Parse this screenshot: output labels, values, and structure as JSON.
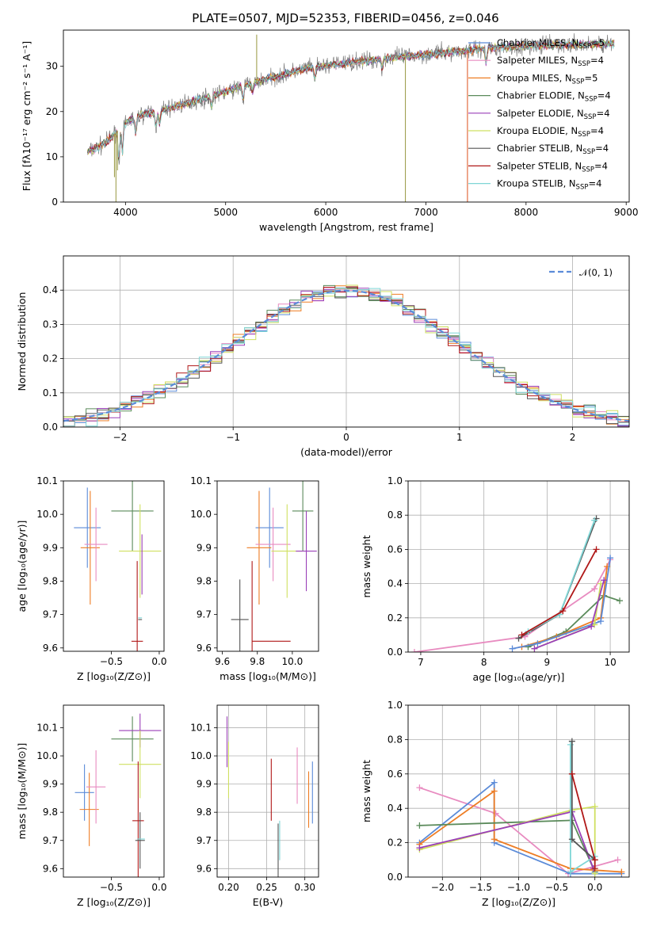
{
  "title": "PLATE=0507, MJD=52353, FIBERID=0456, z=0.046",
  "colors": {
    "Chabrier MILES": "#5b8bd8",
    "Salpeter MILES": "#e88bc0",
    "Kroupa MILES": "#ee7d24",
    "Chabrier ELODIE": "#5a8a5a",
    "Salpeter ELODIE": "#9a3fb8",
    "Kroupa ELODIE": "#cfe060",
    "Chabrier STELIB": "#555555",
    "Salpeter STELIB": "#b01818",
    "Kroupa STELIB": "#7fd6d6",
    "data": "#7f7f7f"
  },
  "legend": [
    {
      "key": "Chabrier MILES",
      "text": "Chabrier MILES, N",
      "sub": "SSP",
      "n": "=5"
    },
    {
      "key": "Salpeter MILES",
      "text": "Salpeter MILES, N",
      "sub": "SSP",
      "n": "=4"
    },
    {
      "key": "Kroupa MILES",
      "text": "Kroupa MILES, N",
      "sub": "SSP",
      "n": "=5"
    },
    {
      "key": "Chabrier ELODIE",
      "text": "Chabrier ELODIE, N",
      "sub": "SSP",
      "n": "=4"
    },
    {
      "key": "Salpeter ELODIE",
      "text": "Salpeter ELODIE, N",
      "sub": "SSP",
      "n": "=4"
    },
    {
      "key": "Kroupa ELODIE",
      "text": "Kroupa ELODIE, N",
      "sub": "SSP",
      "n": "=4"
    },
    {
      "key": "Chabrier STELIB",
      "text": "Chabrier STELIB, N",
      "sub": "SSP",
      "n": "=4"
    },
    {
      "key": "Salpeter STELIB",
      "text": "Salpeter STELIB, N",
      "sub": "SSP",
      "n": "=4"
    },
    {
      "key": "Kroupa STELIB",
      "text": "Kroupa STELIB, N",
      "sub": "SSP",
      "n": "=4"
    }
  ],
  "chart_data": [
    {
      "id": "spectrum",
      "type": "line",
      "xlabel": "wavelength [Angstrom, rest frame]",
      "ylabel": "Flux [fλ10⁻¹⁷ erg cm⁻² s⁻¹ A⁻¹]",
      "xlim": [
        3380,
        9030
      ],
      "ylim": [
        0,
        38
      ],
      "xticks": [
        4000,
        5000,
        6000,
        7000,
        8000,
        9000
      ],
      "yticks": [
        0,
        10,
        20,
        30
      ],
      "x_range": [
        3620,
        8880
      ],
      "continuum": [
        [
          3620,
          11
        ],
        [
          3800,
          13
        ],
        [
          3950,
          16.5
        ],
        [
          4100,
          19
        ],
        [
          4400,
          20.5
        ],
        [
          4800,
          23
        ],
        [
          5300,
          26.5
        ],
        [
          5800,
          29.5
        ],
        [
          6300,
          31
        ],
        [
          6700,
          32
        ],
        [
          7200,
          33
        ],
        [
          7600,
          34
        ],
        [
          8000,
          34.5
        ],
        [
          8500,
          34.8
        ],
        [
          8880,
          35
        ]
      ],
      "spikes": [
        [
          3905,
          0
        ],
        [
          6795,
          0
        ],
        [
          7415,
          0
        ],
        [
          5310,
          37
        ],
        [
          3890,
          5.5
        ],
        [
          3920,
          7
        ]
      ]
    },
    {
      "id": "residuals",
      "type": "area",
      "xlabel": "(data-model)/error",
      "ylabel": "Normed distribution",
      "xlim": [
        -2.5,
        2.5
      ],
      "ylim": [
        0,
        0.5
      ],
      "xticks": [
        -2,
        -1,
        0,
        1,
        2
      ],
      "yticks": [
        0.0,
        0.1,
        0.2,
        0.3,
        0.4
      ],
      "bin_width": 0.1,
      "series": [
        {
          "name": "𝒩(0, 1)",
          "label_text": "𝒩(0, 1)",
          "curve": "gaussian",
          "mu": 0,
          "sigma": 1
        }
      ],
      "grid": true,
      "legend": "top-right"
    },
    {
      "id": "age_vs_Z",
      "type": "scatter",
      "xlabel": "Z [log₁₀(Z/Z⊙)]",
      "ylabel": "age  [log₁₀(age/yr)]",
      "xlim": [
        -1.0,
        0.05
      ],
      "ylim": [
        9.59,
        10.1
      ],
      "xticks": [
        -0.5,
        0.0
      ],
      "yticks": [
        9.6,
        9.7,
        9.8,
        9.9,
        10.0,
        10.1
      ],
      "points": [
        {
          "key": "Chabrier MILES",
          "x": -0.75,
          "xerr": 0.14,
          "y": 9.96,
          "yerr": 0.12
        },
        {
          "key": "Kroupa MILES",
          "x": -0.72,
          "xerr": 0.1,
          "y": 9.9,
          "yerr": 0.17
        },
        {
          "key": "Salpeter MILES",
          "x": -0.66,
          "xerr": 0.12,
          "y": 9.91,
          "yerr": 0.11
        },
        {
          "key": "Chabrier ELODIE",
          "x": -0.28,
          "xerr": 0.22,
          "y": 10.01,
          "yerr": 0.12
        },
        {
          "key": "Kroupa ELODIE",
          "x": -0.2,
          "xerr": 0.22,
          "y": 9.89,
          "yerr": 0.14
        },
        {
          "key": "Salpeter ELODIE",
          "x": -0.18,
          "xerr": 0.0,
          "y": 9.85,
          "yerr": 0.09
        },
        {
          "key": "Chabrier STELIB",
          "x": -0.2,
          "xerr": 0.02,
          "y": 9.685,
          "yerr": 0.0
        },
        {
          "key": "Kroupa STELIB",
          "x": -0.2,
          "xerr": 0.02,
          "y": 9.69,
          "yerr": 0.0
        },
        {
          "key": "Salpeter STELIB",
          "x": -0.23,
          "xerr": 0.06,
          "y": 9.62,
          "yerr": 0.24
        }
      ]
    },
    {
      "id": "age_vs_mass",
      "type": "scatter",
      "xlabel": "mass [log₁₀(M/M⊙)]",
      "ylabel": "",
      "xlim": [
        9.57,
        10.15
      ],
      "ylim": [
        9.59,
        10.1
      ],
      "xticks": [
        9.6,
        9.8,
        10.0
      ],
      "yticks": [
        9.6,
        9.7,
        9.8,
        9.9,
        10.0,
        10.1
      ],
      "points": [
        {
          "key": "Chabrier MILES",
          "x": 9.87,
          "xerr": 0.08,
          "y": 9.96,
          "yerr": 0.12
        },
        {
          "key": "Kroupa MILES",
          "x": 9.81,
          "xerr": 0.07,
          "y": 9.9,
          "yerr": 0.17
        },
        {
          "key": "Salpeter MILES",
          "x": 9.89,
          "xerr": 0.1,
          "y": 9.91,
          "yerr": 0.11
        },
        {
          "key": "Chabrier ELODIE",
          "x": 10.06,
          "xerr": 0.06,
          "y": 10.01,
          "yerr": 0.12
        },
        {
          "key": "Kroupa ELODIE",
          "x": 9.97,
          "xerr": 0.09,
          "y": 9.89,
          "yerr": 0.14
        },
        {
          "key": "Salpeter ELODIE",
          "x": 10.08,
          "xerr": 0.06,
          "y": 9.89,
          "yerr": 0.12
        },
        {
          "key": "Chabrier STELIB",
          "x": 9.7,
          "xerr": 0.05,
          "y": 9.685,
          "yerr": 0.12
        },
        {
          "key": "Kroupa STELIB",
          "x": 9.7,
          "xerr": 0.0,
          "y": 9.69,
          "yerr": 0.0
        },
        {
          "key": "Salpeter STELIB",
          "x": 9.77,
          "xerr": 0.0,
          "y": 9.62,
          "yerr": 0.24
        },
        {
          "key": "Salpeter STELIB",
          "x": 9.88,
          "xerr": 0.11,
          "y": 9.62,
          "yerr": 0.0
        }
      ]
    },
    {
      "id": "weight_vs_age",
      "type": "line",
      "xlabel": "age  [log₁₀(age/yr)]",
      "ylabel": "mass weight",
      "xlim": [
        6.8,
        10.3
      ],
      "ylim": [
        0,
        1
      ],
      "xticks": [
        7,
        8,
        9,
        10
      ],
      "yticks": [
        0.0,
        0.2,
        0.4,
        0.6,
        0.8,
        1.0
      ],
      "grid": true,
      "series": [
        {
          "key": "Salpeter MILES",
          "points": [
            [
              6.9,
              0.0
            ],
            [
              8.65,
              0.09
            ],
            [
              9.75,
              0.37
            ],
            [
              10.0,
              0.54
            ]
          ]
        },
        {
          "key": "Chabrier STELIB",
          "points": [
            [
              8.55,
              0.08
            ],
            [
              9.2,
              0.22
            ],
            [
              9.78,
              0.78
            ]
          ]
        },
        {
          "key": "Kroupa STELIB",
          "points": [
            [
              8.7,
              0.12
            ],
            [
              9.2,
              0.22
            ],
            [
              9.75,
              0.77
            ]
          ]
        },
        {
          "key": "Salpeter STELIB",
          "points": [
            [
              8.6,
              0.1
            ],
            [
              9.25,
              0.24
            ],
            [
              9.78,
              0.6
            ]
          ]
        },
        {
          "key": "Chabrier ELODIE",
          "points": [
            [
              8.7,
              0.03
            ],
            [
              9.3,
              0.12
            ],
            [
              9.9,
              0.33
            ],
            [
              10.15,
              0.3
            ]
          ]
        },
        {
          "key": "Kroupa MILES",
          "points": [
            [
              8.6,
              0.03
            ],
            [
              9.15,
              0.09
            ],
            [
              9.85,
              0.2
            ],
            [
              9.95,
              0.5
            ]
          ]
        },
        {
          "key": "Chabrier MILES",
          "points": [
            [
              8.45,
              0.02
            ],
            [
              8.85,
              0.05
            ],
            [
              9.85,
              0.18
            ],
            [
              10.0,
              0.55
            ]
          ]
        },
        {
          "key": "Kroupa ELODIE",
          "points": [
            [
              8.8,
              0.02
            ],
            [
              9.75,
              0.16
            ],
            [
              9.85,
              0.4
            ]
          ]
        },
        {
          "key": "Salpeter ELODIE",
          "points": [
            [
              8.8,
              0.02
            ],
            [
              9.7,
              0.15
            ],
            [
              9.9,
              0.42
            ]
          ]
        }
      ]
    },
    {
      "id": "mass_vs_Z",
      "type": "scatter",
      "xlabel": "Z [log₁₀(Z/Z⊙)]",
      "ylabel": "mass [log₁₀(M/M⊙)]",
      "xlim": [
        -1.0,
        0.05
      ],
      "ylim": [
        9.57,
        10.18
      ],
      "xticks": [
        -0.5,
        0.0
      ],
      "yticks": [
        9.6,
        9.7,
        9.8,
        9.9,
        10.0,
        10.1
      ],
      "points": [
        {
          "key": "Chabrier MILES",
          "x": -0.78,
          "xerr": 0.1,
          "y": 9.87,
          "yerr": 0.1
        },
        {
          "key": "Kroupa MILES",
          "x": -0.73,
          "xerr": 0.1,
          "y": 9.81,
          "yerr": 0.13
        },
        {
          "key": "Salpeter MILES",
          "x": -0.66,
          "xerr": 0.1,
          "y": 9.89,
          "yerr": 0.13
        },
        {
          "key": "Chabrier ELODIE",
          "x": -0.28,
          "xerr": 0.22,
          "y": 10.06,
          "yerr": 0.08
        },
        {
          "key": "Salpeter ELODIE",
          "x": -0.2,
          "xerr": 0.22,
          "y": 10.09,
          "yerr": 0.06
        },
        {
          "key": "Kroupa ELODIE",
          "x": -0.2,
          "xerr": 0.22,
          "y": 9.97,
          "yerr": 0.12
        },
        {
          "key": "Salpeter STELIB",
          "x": -0.22,
          "xerr": 0.06,
          "y": 9.77,
          "yerr": 0.21
        },
        {
          "key": "Chabrier STELIB",
          "x": -0.2,
          "xerr": 0.05,
          "y": 9.7,
          "yerr": 0.1
        },
        {
          "key": "Kroupa STELIB",
          "x": -0.19,
          "xerr": 0.04,
          "y": 9.705,
          "yerr": 0.0
        }
      ]
    },
    {
      "id": "mass_vs_EBV",
      "type": "scatter",
      "xlabel": "E(B-V)",
      "ylabel": "",
      "xlim": [
        0.185,
        0.318
      ],
      "ylim": [
        9.57,
        10.18
      ],
      "xticks": [
        0.2,
        0.25,
        0.3
      ],
      "yticks": [
        9.6,
        9.7,
        9.8,
        9.9,
        10.0,
        10.1
      ],
      "grid": true,
      "points": [
        {
          "key": "Salpeter ELODIE",
          "x": 0.198,
          "y": 10.05,
          "yerr": 0.09
        },
        {
          "key": "Kroupa ELODIE",
          "x": 0.2,
          "y": 9.95,
          "yerr": 0.1
        },
        {
          "key": "Salpeter STELIB",
          "x": 0.256,
          "y": 9.88,
          "yerr": 0.11
        },
        {
          "key": "Chabrier STELIB",
          "x": 0.265,
          "y": 9.66,
          "yerr": 0.1
        },
        {
          "key": "Kroupa STELIB",
          "x": 0.267,
          "y": 9.7,
          "yerr": 0.07
        },
        {
          "key": "Salpeter MILES",
          "x": 0.29,
          "y": 9.93,
          "yerr": 0.1
        },
        {
          "key": "Kroupa MILES",
          "x": 0.305,
          "y": 9.845,
          "yerr": 0.1
        },
        {
          "key": "Chabrier MILES",
          "x": 0.31,
          "y": 9.87,
          "yerr": 0.11
        }
      ]
    },
    {
      "id": "weight_vs_Z",
      "type": "line",
      "xlabel": "Z [log₁₀(Z/Z⊙)]",
      "ylabel": "mass weight",
      "xlim": [
        -2.45,
        0.45
      ],
      "ylim": [
        0,
        1
      ],
      "xticks": [
        -2.0,
        -1.5,
        -1.0,
        -0.5,
        0.0
      ],
      "yticks": [
        0.0,
        0.2,
        0.4,
        0.6,
        0.8,
        1.0
      ],
      "grid": true,
      "series": [
        {
          "key": "Salpeter MILES",
          "points": [
            [
              -2.3,
              0.52
            ],
            [
              -1.3,
              0.37
            ],
            [
              -0.35,
              0.02
            ],
            [
              0.3,
              0.1
            ]
          ]
        },
        {
          "key": "Chabrier MILES",
          "points": [
            [
              -2.3,
              0.2
            ],
            [
              -1.32,
              0.55
            ],
            [
              -1.32,
              0.2
            ],
            [
              -0.32,
              0.02
            ],
            [
              0.35,
              0.02
            ]
          ]
        },
        {
          "key": "Kroupa MILES",
          "points": [
            [
              -2.3,
              0.19
            ],
            [
              -1.32,
              0.5
            ],
            [
              -1.32,
              0.22
            ],
            [
              -0.32,
              0.05
            ],
            [
              0.35,
              0.03
            ]
          ]
        },
        {
          "key": "Chabrier ELODIE",
          "points": [
            [
              -2.3,
              0.3
            ],
            [
              -0.3,
              0.33
            ],
            [
              0.0,
              0.03
            ]
          ]
        },
        {
          "key": "Kroupa ELODIE",
          "points": [
            [
              -2.3,
              0.16
            ],
            [
              -0.3,
              0.39
            ],
            [
              0.0,
              0.41
            ],
            [
              0.0,
              0.02
            ]
          ]
        },
        {
          "key": "Salpeter ELODIE",
          "points": [
            [
              -2.3,
              0.17
            ],
            [
              -0.3,
              0.38
            ],
            [
              -0.02,
              0.05
            ]
          ]
        },
        {
          "key": "Kroupa STELIB",
          "points": [
            [
              -0.32,
              0.77
            ],
            [
              -0.32,
              0.03
            ],
            [
              0.0,
              0.12
            ]
          ]
        },
        {
          "key": "Chabrier STELIB",
          "points": [
            [
              -0.3,
              0.79
            ],
            [
              -0.3,
              0.22
            ],
            [
              0.0,
              0.1
            ]
          ]
        },
        {
          "key": "Salpeter STELIB",
          "points": [
            [
              -0.3,
              0.6
            ],
            [
              0.0,
              0.1
            ],
            [
              0.0,
              0.05
            ]
          ]
        }
      ]
    }
  ]
}
